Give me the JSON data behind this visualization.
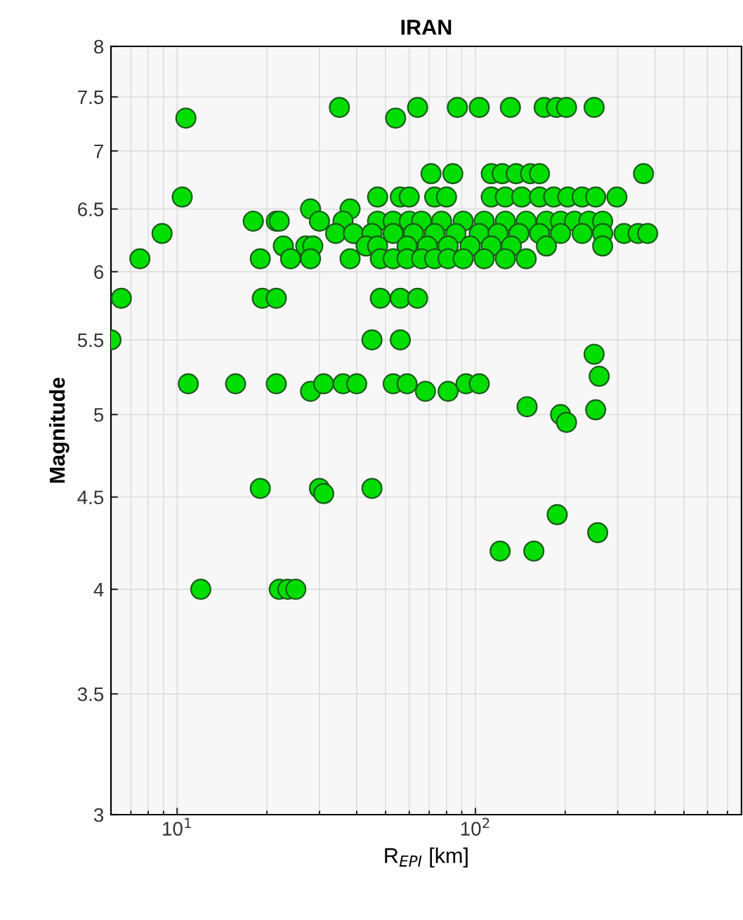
{
  "chart_data": {
    "type": "scatter",
    "title": "IRAN",
    "xlabel": "R$_{EPI}$ [km]",
    "ylabel": "Magnitude",
    "log": "xy",
    "grid": true,
    "marker": "circle",
    "xlim": [
      6,
      780
    ],
    "xticks": [
      {
        "value": 10,
        "label": "10$^{1}$"
      },
      {
        "value": 100,
        "label": "10$^{2}$"
      }
    ],
    "ylim": [
      3,
      8
    ],
    "yticks": [
      3,
      3.5,
      4,
      4.5,
      5,
      5.5,
      6,
      6.5,
      7,
      7.5,
      8
    ],
    "series": [
      {
        "color": "#00dd00",
        "x": [
          10.7,
          54,
          35,
          64,
          87,
          103,
          131,
          170,
          187,
          202,
          250,
          71,
          84,
          113,
          123,
          137,
          153,
          164,
          366,
          10.4,
          47,
          56,
          60,
          73,
          80,
          113,
          126,
          143,
          164,
          183,
          204,
          228,
          253,
          298,
          28,
          38,
          18,
          21.5,
          22,
          30,
          36,
          47,
          53,
          60,
          66,
          77,
          91,
          107,
          126,
          148,
          173,
          193,
          215,
          240,
          267,
          8.9,
          34,
          39,
          45,
          53,
          62,
          73,
          86,
          103,
          119,
          140,
          164,
          193,
          228,
          267,
          315,
          351,
          378,
          22.7,
          27,
          28.5,
          43,
          47,
          59,
          69,
          81,
          96,
          113,
          132,
          173,
          267,
          7.5,
          19,
          24,
          28,
          38,
          48,
          53,
          59,
          66,
          73,
          81,
          91,
          107,
          126,
          148,
          6.5,
          19.3,
          21.5,
          48,
          56,
          64,
          6.0,
          45,
          56,
          250,
          10.9,
          15.7,
          21.5,
          28,
          31,
          36,
          40,
          53,
          59,
          68,
          81,
          93,
          103,
          260,
          149,
          193,
          202,
          253,
          19,
          30,
          45,
          31,
          188,
          257,
          121,
          157,
          12,
          22,
          23.5,
          25
        ],
        "values": [
          7.3,
          7.3,
          7.4,
          7.4,
          7.4,
          7.4,
          7.4,
          7.4,
          7.4,
          7.4,
          7.4,
          6.8,
          6.8,
          6.8,
          6.8,
          6.8,
          6.8,
          6.8,
          6.8,
          6.6,
          6.6,
          6.6,
          6.6,
          6.6,
          6.6,
          6.6,
          6.6,
          6.6,
          6.6,
          6.6,
          6.6,
          6.6,
          6.6,
          6.6,
          6.5,
          6.5,
          6.4,
          6.4,
          6.4,
          6.4,
          6.4,
          6.4,
          6.4,
          6.4,
          6.4,
          6.4,
          6.4,
          6.4,
          6.4,
          6.4,
          6.4,
          6.4,
          6.4,
          6.4,
          6.4,
          6.3,
          6.3,
          6.3,
          6.3,
          6.3,
          6.3,
          6.3,
          6.3,
          6.3,
          6.3,
          6.3,
          6.3,
          6.3,
          6.3,
          6.3,
          6.3,
          6.3,
          6.3,
          6.2,
          6.2,
          6.2,
          6.2,
          6.2,
          6.2,
          6.2,
          6.2,
          6.2,
          6.2,
          6.2,
          6.2,
          6.2,
          6.1,
          6.1,
          6.1,
          6.1,
          6.1,
          6.1,
          6.1,
          6.1,
          6.1,
          6.1,
          6.1,
          6.1,
          6.1,
          6.1,
          6.1,
          5.8,
          5.8,
          5.8,
          5.8,
          5.8,
          5.8,
          5.5,
          5.5,
          5.5,
          5.4,
          5.2,
          5.2,
          5.2,
          5.15,
          5.2,
          5.2,
          5.2,
          5.2,
          5.2,
          5.15,
          5.15,
          5.2,
          5.2,
          5.25,
          5.05,
          5.0,
          4.95,
          5.03,
          4.55,
          4.55,
          4.55,
          4.52,
          4.4,
          4.3,
          4.2,
          4.2,
          4.0,
          4.0,
          4.0,
          4.0
        ]
      }
    ]
  }
}
